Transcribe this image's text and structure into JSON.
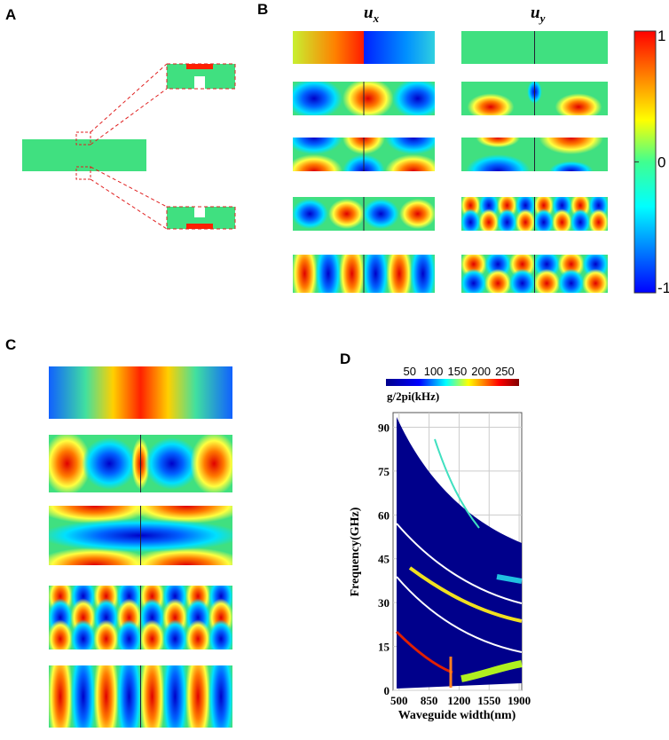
{
  "panels": {
    "a": {
      "label": "A"
    },
    "b": {
      "label": "B",
      "columns": [
        {
          "symbol": "u",
          "subscript": "x"
        },
        {
          "symbol": "u",
          "subscript": "y"
        }
      ],
      "colorbar": {
        "lim": [
          -1,
          1
        ],
        "ticks": [
          1,
          0,
          -1
        ]
      }
    },
    "c": {
      "label": "C"
    },
    "d": {
      "label": "D",
      "colorbar": {
        "label": "g/2pi(kHz)",
        "lim": [
          0,
          280
        ],
        "ticks": [
          50,
          100,
          150,
          200,
          250
        ]
      },
      "xlabel": "Waveguide width(nm)",
      "ylabel": "Frequency(GHz)",
      "xlim": [
        430,
        1930
      ],
      "ylim": [
        0,
        95
      ],
      "xticks": [
        500,
        850,
        1200,
        1550,
        1900
      ],
      "yticks": [
        0,
        15,
        30,
        45,
        60,
        75,
        90
      ]
    }
  }
}
